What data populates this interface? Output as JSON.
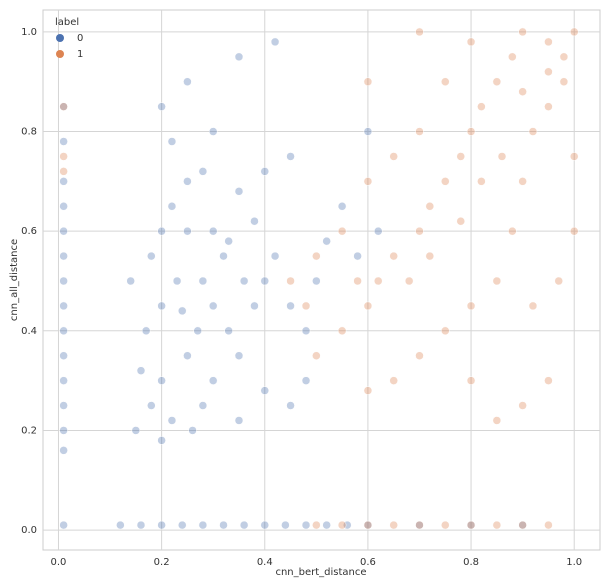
{
  "chart_data": {
    "type": "scatter",
    "xlabel": "cnn_bert_distance",
    "ylabel": "cnn_all_distance",
    "legend_title": "label",
    "legend": "upper left",
    "grid": true,
    "xlim": [
      -0.03,
      1.05
    ],
    "ylim": [
      -0.04,
      1.044
    ],
    "xticks": [
      {
        "value": 0,
        "label": "0.0"
      },
      0.2,
      0.4,
      0.6,
      0.8,
      {
        "value": 1,
        "label": "1.0"
      }
    ],
    "yticks": [
      {
        "value": 0,
        "label": "0.0"
      },
      0.2,
      0.4,
      0.6,
      0.8,
      {
        "value": 1,
        "label": "1.0"
      }
    ],
    "series": [
      {
        "name": "0",
        "color": "#4c72b0",
        "x": [
          0.01,
          0.01,
          0.01,
          0.01,
          0.01,
          0.01,
          0.01,
          0.01,
          0.01,
          0.01,
          0.01,
          0.01,
          0.01,
          0.01,
          0.01,
          0.12,
          0.16,
          0.2,
          0.24,
          0.28,
          0.32,
          0.36,
          0.4,
          0.44,
          0.48,
          0.52,
          0.56,
          0.6,
          0.7,
          0.8,
          0.9,
          0.15,
          0.18,
          0.2,
          0.22,
          0.25,
          0.17,
          0.2,
          0.23,
          0.18,
          0.2,
          0.22,
          0.25,
          0.28,
          0.3,
          0.32,
          0.28,
          0.3,
          0.33,
          0.35,
          0.3,
          0.28,
          0.35,
          0.4,
          0.38,
          0.4,
          0.42,
          0.38,
          0.35,
          0.4,
          0.45,
          0.45,
          0.48,
          0.5,
          0.52,
          0.55,
          0.48,
          0.45,
          0.25,
          0.27,
          0.16,
          0.14,
          0.22,
          0.3,
          0.2,
          0.25,
          0.35,
          0.42,
          0.6,
          0.58,
          0.62,
          0.2,
          0.26,
          0.33,
          0.36,
          0.24
        ],
        "y": [
          0.16,
          0.2,
          0.25,
          0.3,
          0.35,
          0.4,
          0.45,
          0.5,
          0.55,
          0.6,
          0.65,
          0.7,
          0.78,
          0.85,
          0.01,
          0.01,
          0.01,
          0.01,
          0.01,
          0.01,
          0.01,
          0.01,
          0.01,
          0.01,
          0.01,
          0.01,
          0.01,
          0.01,
          0.01,
          0.01,
          0.01,
          0.2,
          0.25,
          0.3,
          0.22,
          0.35,
          0.4,
          0.45,
          0.5,
          0.55,
          0.6,
          0.65,
          0.7,
          0.72,
          0.6,
          0.55,
          0.5,
          0.45,
          0.4,
          0.35,
          0.3,
          0.25,
          0.22,
          0.28,
          0.45,
          0.5,
          0.55,
          0.62,
          0.68,
          0.72,
          0.75,
          0.45,
          0.4,
          0.5,
          0.58,
          0.65,
          0.3,
          0.25,
          0.6,
          0.4,
          0.32,
          0.5,
          0.78,
          0.8,
          0.85,
          0.9,
          0.95,
          0.98,
          0.8,
          0.55,
          0.6,
          0.18,
          0.2,
          0.58,
          0.5,
          0.44
        ]
      },
      {
        "name": "1",
        "color": "#dd8452",
        "x": [
          0.5,
          0.55,
          0.6,
          0.65,
          0.7,
          0.75,
          0.8,
          0.85,
          0.9,
          0.95,
          0.01,
          0.01,
          0.01,
          0.5,
          0.55,
          0.6,
          0.62,
          0.65,
          0.7,
          0.72,
          0.75,
          0.78,
          0.8,
          0.82,
          0.85,
          0.88,
          0.9,
          0.95,
          1.0,
          0.98,
          0.95,
          0.92,
          0.9,
          0.88,
          0.85,
          0.8,
          0.75,
          0.7,
          0.65,
          0.6,
          0.68,
          0.72,
          0.78,
          0.82,
          0.86,
          0.9,
          0.95,
          0.98,
          0.7,
          0.65,
          0.6,
          0.75,
          0.8,
          0.7,
          0.6,
          0.55,
          0.5,
          0.58,
          0.92,
          0.95,
          0.9,
          0.85,
          0.8,
          1.0,
          1.0,
          0.97,
          0.45,
          0.48
        ],
        "y": [
          0.01,
          0.01,
          0.01,
          0.01,
          0.01,
          0.01,
          0.01,
          0.01,
          0.01,
          0.01,
          0.72,
          0.75,
          0.85,
          0.35,
          0.4,
          0.45,
          0.5,
          0.55,
          0.6,
          0.65,
          0.7,
          0.75,
          0.8,
          0.85,
          0.9,
          0.95,
          1.0,
          0.98,
          1.0,
          0.9,
          0.85,
          0.8,
          0.7,
          0.6,
          0.5,
          0.45,
          0.4,
          0.35,
          0.3,
          0.28,
          0.5,
          0.55,
          0.62,
          0.7,
          0.75,
          0.88,
          0.92,
          0.95,
          0.8,
          0.75,
          0.7,
          0.9,
          0.98,
          1.0,
          0.9,
          0.6,
          0.55,
          0.5,
          0.45,
          0.3,
          0.25,
          0.22,
          0.3,
          0.75,
          0.6,
          0.5,
          0.5,
          0.45
        ]
      }
    ]
  }
}
